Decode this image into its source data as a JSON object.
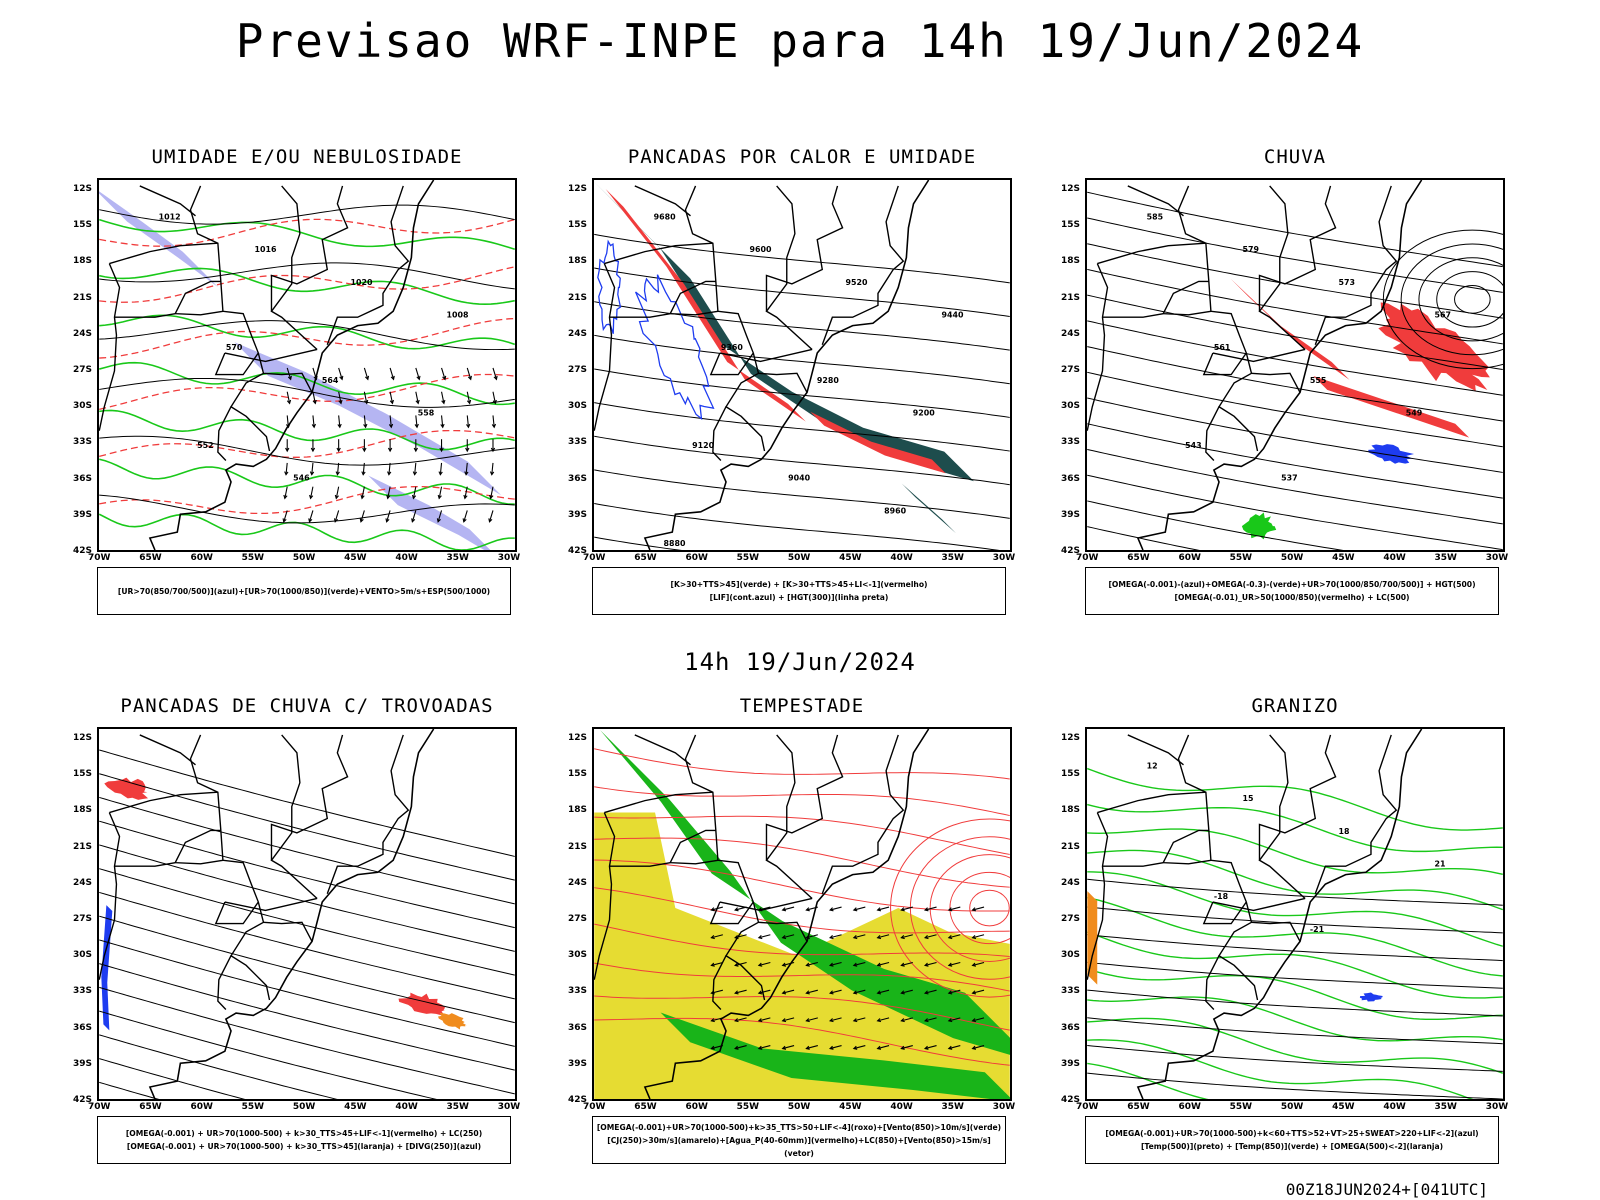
{
  "title": "Previsao WRF-INPE  para 14h 19/Jun/2024",
  "mid_time": "14h 19/Jun/2024",
  "footer_stamp": "00Z18JUN2024+[041UTC]",
  "axes": {
    "lat_labels": [
      "12S",
      "15S",
      "18S",
      "21S",
      "24S",
      "27S",
      "30S",
      "33S",
      "36S",
      "39S",
      "42S"
    ],
    "lon_labels": [
      "70W",
      "65W",
      "60W",
      "55W",
      "50W",
      "45W",
      "40W",
      "35W",
      "30W"
    ]
  },
  "panels": [
    {
      "title": "UMIDADE E/OU NEBULOSIDADE",
      "legend": [
        "[UR>70(850/700/500)](azul)+[UR>70(1000/850)](verde)+VENTO>5m/s+ESP(500/1000)"
      ],
      "contour_labels": [
        "1012",
        "1016",
        "1020",
        "1008",
        "570",
        "564",
        "558",
        "552",
        "546"
      ],
      "colors": {
        "fill_blue": "#a8a8f0",
        "lines_green": "#19c819",
        "lines_red": "#f03c3c"
      }
    },
    {
      "title": "PANCADAS POR CALOR E UMIDADE",
      "legend": [
        "[K>30+TTS>45](verde) + [K>30+TTS>45+LI<-1](vermelho)",
        "[LIF](cont.azul) + [HGT(300)](linha preta)"
      ],
      "contour_labels": [
        "9680",
        "9600",
        "9520",
        "9440",
        "9360",
        "9280",
        "9200",
        "9120",
        "9040",
        "8960",
        "8880"
      ],
      "colors": {
        "fill_green": "#1e4d4d",
        "fill_red": "#f03c3c",
        "lines_blue": "#1e3cf0"
      }
    },
    {
      "title": "CHUVA",
      "legend": [
        "[OMEGA(-0.001)-(azul)+OMEGA(-0.3)-(verde)+UR>70(1000/850/700/500)] + HGT(500)",
        "[OMEGA(-0.01)_UR>50(1000/850)(vermelho) + LC(500)"
      ],
      "contour_labels": [
        "585",
        "579",
        "573",
        "567",
        "561",
        "555",
        "549",
        "543",
        "537"
      ],
      "colors": {
        "fill_red": "#f03c3c",
        "fill_blue": "#1e3cf0",
        "fill_green": "#19c819"
      }
    },
    {
      "title": "PANCADAS DE CHUVA C/ TROVOADAS",
      "legend": [
        "[OMEGA(-0.001) + UR>70(1000-500) + k>30_TTS>45+LIF<-1](vermelho) + LC(250)",
        "[OMEGA(-0.001) + UR>70(1000-500) + k>30_TTS>45](laranja) + [DIVG(250)](azul)"
      ],
      "contour_labels": [],
      "colors": {
        "fill_red": "#f03c3c",
        "fill_orange": "#f08c1e",
        "fill_blue": "#1e3cf0"
      }
    },
    {
      "title": "TEMPESTADE",
      "legend": [
        "[OMEGA(-0.001)+UR>70(1000-500)+k>35_TTS>50+LIF<-4](roxo)+[Vento(850)>10m/s](verde)",
        "[CJ(250)>30m/s](amarelo)+[Agua_P(40-60mm)](vermelho)+LC(850)+[Vento(850)>15m/s](vetor)"
      ],
      "contour_labels": [],
      "colors": {
        "fill_yellow": "#e6dc32",
        "fill_green": "#19b419",
        "lines_red": "#f03c3c"
      }
    },
    {
      "title": "GRANIZO",
      "legend": [
        "[OMEGA(-0.001)+UR>70(1000-500)+k<60+TTS>52+VT>25+SWEAT>220+LIF<-2](azul)",
        "[Temp(500)](preto) + [Temp(850)](verde) + [OMEGA(500)<-2](laranja)"
      ],
      "contour_labels": [
        "12",
        "15",
        "18",
        "21",
        "-18",
        "-21"
      ],
      "colors": {
        "lines_green": "#19c819",
        "fill_orange": "#f08c1e",
        "fill_blue": "#1e3cf0"
      }
    }
  ]
}
